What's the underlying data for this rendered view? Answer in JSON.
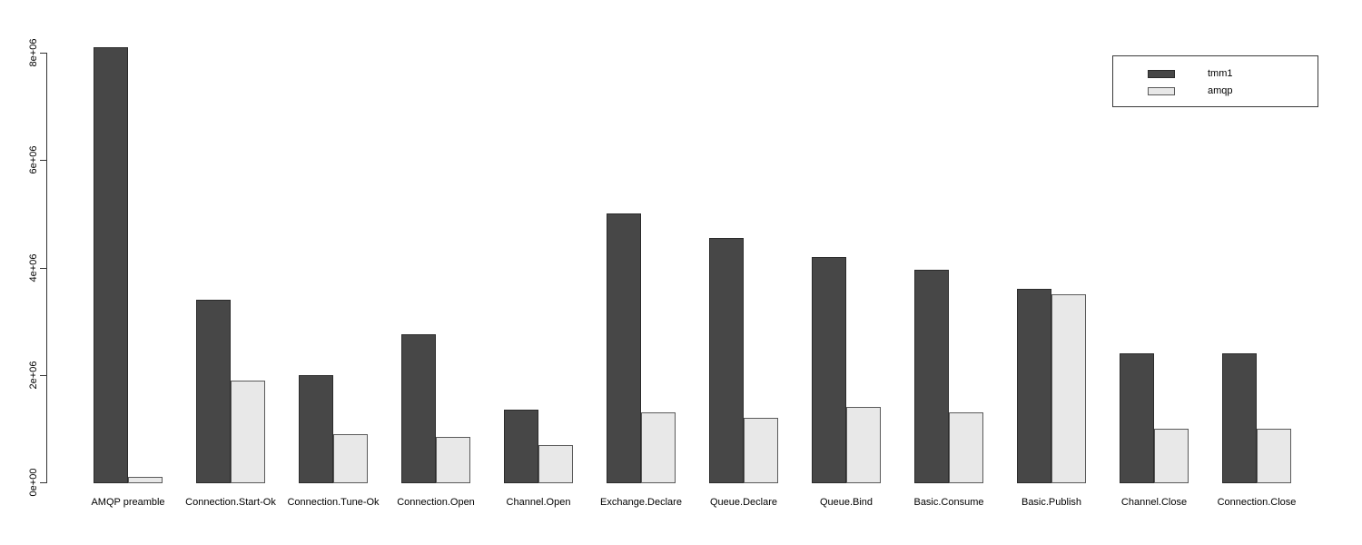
{
  "chart_data": {
    "type": "bar",
    "title": "",
    "xlabel": "",
    "ylabel": "",
    "grid": false,
    "legend_position": "top-right",
    "ylim": [
      0,
      8000000
    ],
    "yticks": [
      {
        "label": "0e+00",
        "value": 0
      },
      {
        "label": "2e+06",
        "value": 2000000
      },
      {
        "label": "4e+06",
        "value": 4000000
      },
      {
        "label": "6e+06",
        "value": 6000000
      },
      {
        "label": "8e+06",
        "value": 8000000
      }
    ],
    "categories": [
      "AMQP preamble",
      "Connection.Start-Ok",
      "Connection.Tune-Ok",
      "Connection.Open",
      "Channel.Open",
      "Exchange.Declare",
      "Queue.Declare",
      "Queue.Bind",
      "Basic.Consume",
      "Basic.Publish",
      "Channel.Close",
      "Connection.Close"
    ],
    "series": [
      {
        "name": "tmm1",
        "fill": "#474747",
        "border": "#2b2b2b",
        "values": [
          8100000,
          3400000,
          2000000,
          2750000,
          1350000,
          5000000,
          4550000,
          4200000,
          3950000,
          3600000,
          2400000,
          2400000
        ]
      },
      {
        "name": "amqp",
        "fill": "#e8e8e8",
        "border": "#5a5a5a",
        "values": [
          100000,
          1900000,
          900000,
          850000,
          700000,
          1300000,
          1200000,
          1400000,
          1300000,
          3500000,
          1000000,
          1000000
        ]
      }
    ]
  },
  "colors": {
    "background": "#ffffff",
    "axis": "#333333",
    "text": "#000000",
    "legend_border": "#3a3a3a"
  }
}
